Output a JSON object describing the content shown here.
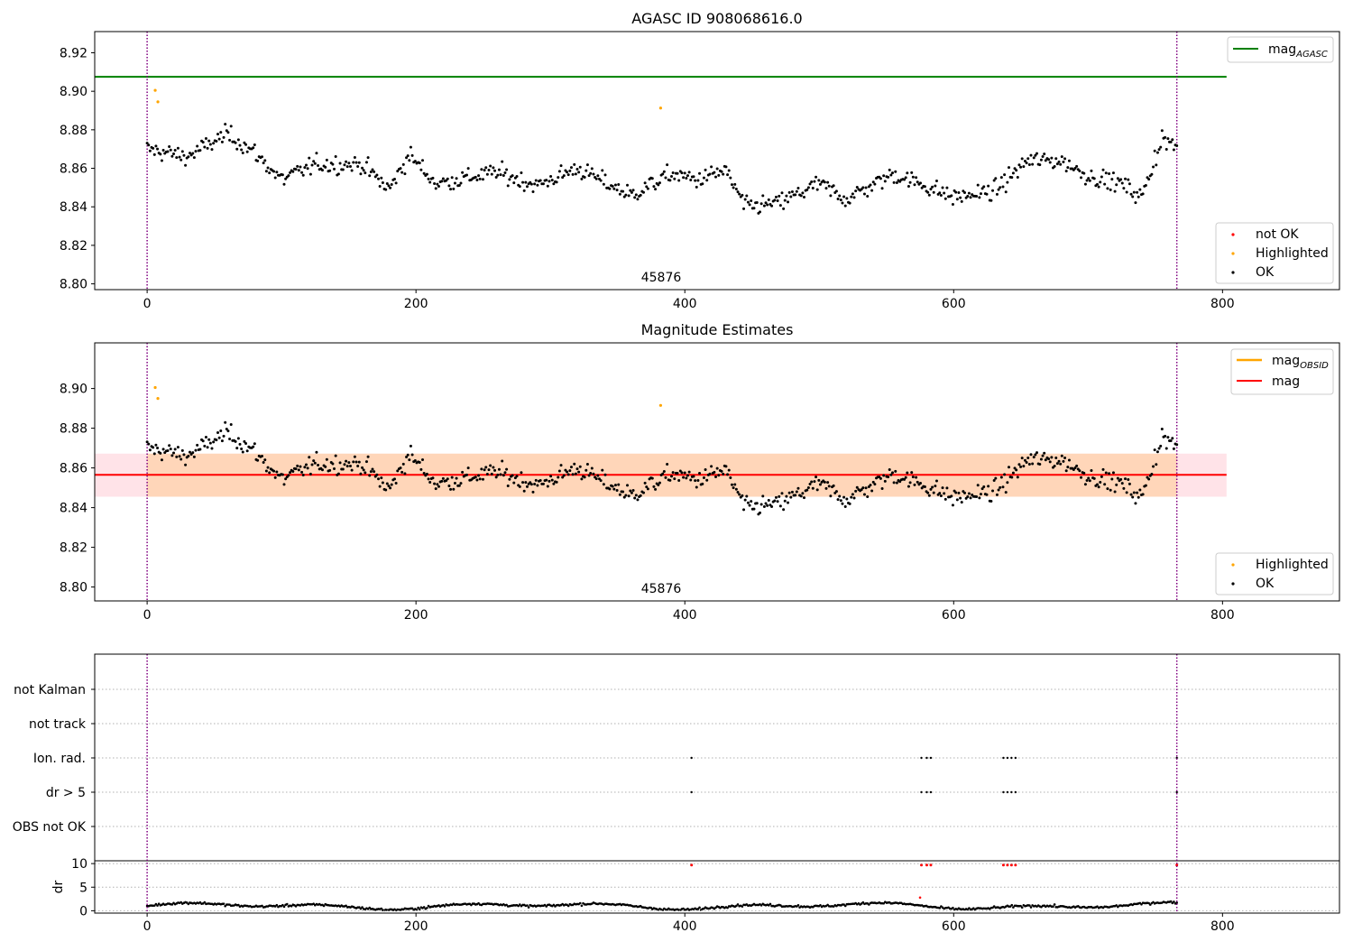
{
  "chart_data": [
    {
      "type": "scatter",
      "title": "AGASC ID 908068616.0",
      "ylim": [
        8.797,
        8.931
      ],
      "xlim": [
        -39,
        887
      ],
      "xticks": [
        "0",
        "200",
        "400",
        "600",
        "800"
      ],
      "yticks": [
        "8.80",
        "8.82",
        "8.84",
        "8.86",
        "8.88",
        "8.90",
        "8.92"
      ],
      "ytick_values": [
        8.8,
        8.82,
        8.84,
        8.86,
        8.88,
        8.9,
        8.92
      ],
      "obsid_label": "45876",
      "vlines_x": [
        0,
        766
      ],
      "hlines": [
        {
          "name": "mag_AGASC",
          "y": 8.9075,
          "x_range": [
            -39,
            803
          ],
          "color": "#008000"
        }
      ],
      "legend_top": [
        {
          "label": "mag",
          "sub": "AGASC",
          "color": "#008000"
        }
      ],
      "legend_bottom": [
        {
          "label": "not OK",
          "color": "#ff0000"
        },
        {
          "label": "Highlighted",
          "color": "#ffa500"
        },
        {
          "label": "OK",
          "color": "#000000"
        }
      ],
      "highlighted_points": [
        [
          6,
          8.9005
        ],
        [
          8,
          8.8945
        ],
        [
          382,
          8.8913
        ]
      ],
      "ok_series": {
        "x_range": [
          0,
          766
        ],
        "n": 700,
        "anchors": [
          [
            0,
            8.87
          ],
          [
            30,
            8.866
          ],
          [
            60,
            8.878
          ],
          [
            80,
            8.868
          ],
          [
            100,
            8.854
          ],
          [
            125,
            8.862
          ],
          [
            160,
            8.862
          ],
          [
            180,
            8.849
          ],
          [
            195,
            8.867
          ],
          [
            215,
            8.852
          ],
          [
            260,
            8.858
          ],
          [
            290,
            8.851
          ],
          [
            320,
            8.86
          ],
          [
            360,
            8.846
          ],
          [
            390,
            8.857
          ],
          [
            410,
            8.854
          ],
          [
            430,
            8.859
          ],
          [
            445,
            8.84
          ],
          [
            470,
            8.842
          ],
          [
            500,
            8.852
          ],
          [
            520,
            8.844
          ],
          [
            555,
            8.857
          ],
          [
            575,
            8.852
          ],
          [
            600,
            8.845
          ],
          [
            630,
            8.848
          ],
          [
            655,
            8.864
          ],
          [
            680,
            8.864
          ],
          [
            700,
            8.856
          ],
          [
            725,
            8.852
          ],
          [
            740,
            8.845
          ],
          [
            755,
            8.876
          ],
          [
            766,
            8.87
          ]
        ],
        "spread": 0.009,
        "color": "#000000"
      }
    },
    {
      "type": "scatter",
      "title": "Magnitude Estimates",
      "ylim": [
        8.793,
        8.923
      ],
      "xlim": [
        -39,
        887
      ],
      "xticks": [
        "0",
        "200",
        "400",
        "600",
        "800"
      ],
      "yticks": [
        "8.80",
        "8.82",
        "8.84",
        "8.86",
        "8.88",
        "8.90"
      ],
      "ytick_values": [
        8.8,
        8.82,
        8.84,
        8.86,
        8.88,
        8.9
      ],
      "obsid_label": "45876",
      "vlines_x": [
        0,
        766
      ],
      "band": {
        "y_low": 8.8455,
        "y_high": 8.8672,
        "x_range": [
          -39,
          803
        ]
      },
      "hlines": [
        {
          "name": "mag",
          "y": 8.8565,
          "x_range": [
            -39,
            803
          ],
          "color": "#ff0000"
        }
      ],
      "legend_top": [
        {
          "label": "mag",
          "sub": "OBSID",
          "color": "#ffa500"
        },
        {
          "label": "mag",
          "sub": "",
          "color": "#ff0000"
        }
      ],
      "legend_bottom": [
        {
          "label": "Highlighted",
          "color": "#ffa500"
        },
        {
          "label": "OK",
          "color": "#000000"
        }
      ],
      "highlighted_points": [
        [
          6,
          8.9005
        ],
        [
          8,
          8.895
        ],
        [
          382,
          8.8915
        ]
      ]
    },
    {
      "type": "scatter",
      "title": "",
      "flag_labels": [
        "not Kalman",
        "not track",
        "Ion. rad.",
        "dr > 5",
        "OBS not OK"
      ],
      "xlim": [
        -39,
        887
      ],
      "xticks": [
        "0",
        "200",
        "400",
        "600",
        "800"
      ],
      "vlines_x": [
        0,
        766
      ],
      "flag_points": {
        "Ion. rad.": [
          405,
          576,
          580,
          583,
          637,
          640,
          643,
          646,
          766
        ],
        "dr > 5": [
          405,
          576,
          580,
          583,
          637,
          640,
          643,
          646,
          766
        ]
      },
      "dr": {
        "ylabel": "dr",
        "yticks": [
          "0",
          "5",
          "10"
        ],
        "ytick_values": [
          0,
          5,
          10
        ],
        "ylim": [
          -0.5,
          10.6
        ],
        "high_points_x": [
          405,
          576,
          580,
          583,
          637,
          640,
          643,
          646,
          766
        ],
        "high_points_y": 9.7,
        "extra_red_point": [
          575,
          2.8
        ],
        "base_level": 1.0
      }
    }
  ]
}
